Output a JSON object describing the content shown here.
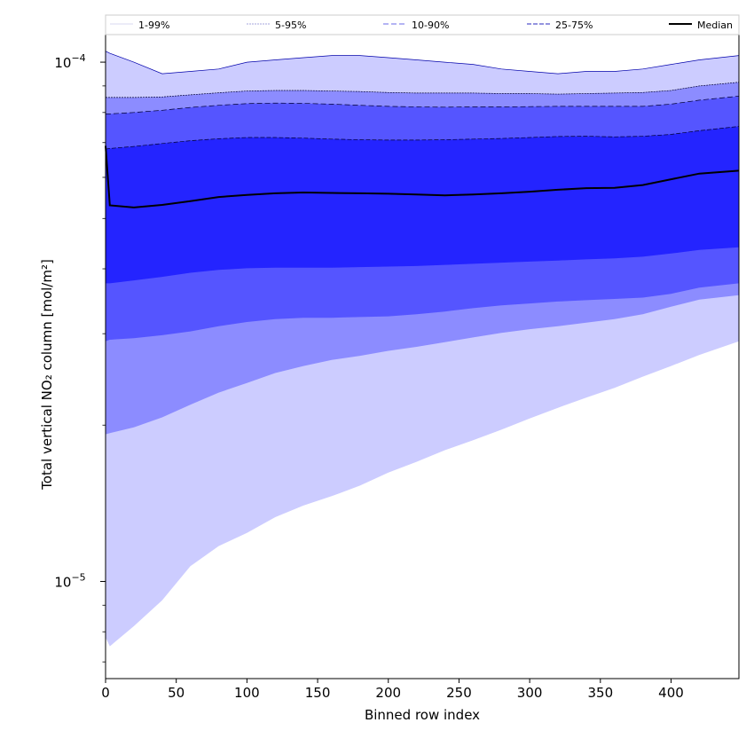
{
  "chart_data": {
    "type": "area",
    "title": "",
    "xlabel": "Binned row index",
    "ylabel": "Total vertical NO₂ column [mol/m²]",
    "x_ticks": [
      "0",
      "50",
      "100",
      "150",
      "200",
      "250",
      "300",
      "350",
      "400"
    ],
    "y_tick_labels": [
      {
        "value": 1e-05,
        "base": "10",
        "exp": "−5"
      },
      {
        "value": 0.0001,
        "base": "10",
        "exp": "−4"
      }
    ],
    "xlim": [
      0,
      448
    ],
    "ylim": [
      6.5e-06,
      0.000113
    ],
    "yscale": "log",
    "grid": false,
    "legend_position": "top",
    "legend": [
      "1-99%",
      "5-95%",
      "10-90%",
      "25-75%",
      "Median"
    ],
    "colors": {
      "band_1_99": "#ccccff",
      "band_5_95": "#8c8cff",
      "band_10_90": "#5555ff",
      "band_25_75": "#2424ff",
      "median": "#000000",
      "edge_dark": "#0000aa"
    },
    "x": [
      0,
      3,
      20,
      40,
      60,
      80,
      100,
      120,
      140,
      160,
      180,
      200,
      220,
      240,
      260,
      280,
      300,
      320,
      340,
      360,
      380,
      400,
      420,
      448
    ],
    "series": [
      {
        "name": "1-99%",
        "lower": [
          7.8e-06,
          7.5e-06,
          8.2e-06,
          9.2e-06,
          1.07e-05,
          1.17e-05,
          1.24e-05,
          1.33e-05,
          1.4e-05,
          1.46e-05,
          1.53e-05,
          1.62e-05,
          1.7e-05,
          1.79e-05,
          1.87e-05,
          1.96e-05,
          2.06e-05,
          2.16e-05,
          2.26e-05,
          2.36e-05,
          2.48e-05,
          2.6e-05,
          2.73e-05,
          2.9e-05
        ],
        "upper": [
          0.000105,
          0.000104,
          0.0001,
          9.5e-05,
          9.6e-05,
          9.7e-05,
          0.0001,
          0.000101,
          0.000102,
          0.000103,
          0.000103,
          0.000102,
          0.000101,
          0.0001,
          9.9e-05,
          9.7e-05,
          9.6e-05,
          9.5e-05,
          9.6e-05,
          9.6e-05,
          9.7e-05,
          9.9e-05,
          0.000101,
          0.000103
        ]
      },
      {
        "name": "5-95%",
        "lower": [
          1.92e-05,
          1.93e-05,
          1.98e-05,
          2.07e-05,
          2.19e-05,
          2.31e-05,
          2.41e-05,
          2.52e-05,
          2.6e-05,
          2.67e-05,
          2.72e-05,
          2.78e-05,
          2.83e-05,
          2.89e-05,
          2.95e-05,
          3.01e-05,
          3.06e-05,
          3.1e-05,
          3.15e-05,
          3.2e-05,
          3.27e-05,
          3.38e-05,
          3.49e-05,
          3.56e-05
        ],
        "upper": [
          8.55e-05,
          8.55e-05,
          8.55e-05,
          8.57e-05,
          8.65e-05,
          8.73e-05,
          8.8e-05,
          8.82e-05,
          8.82e-05,
          8.8e-05,
          8.78e-05,
          8.74e-05,
          8.72e-05,
          8.72e-05,
          8.72e-05,
          8.7e-05,
          8.7e-05,
          8.68e-05,
          8.7e-05,
          8.72e-05,
          8.74e-05,
          8.82e-05,
          9e-05,
          9.15e-05
        ]
      },
      {
        "name": "10-90%",
        "lower": [
          2.9e-05,
          2.92e-05,
          2.94e-05,
          2.98e-05,
          3.03e-05,
          3.1e-05,
          3.16e-05,
          3.2e-05,
          3.22e-05,
          3.22e-05,
          3.23e-05,
          3.24e-05,
          3.27e-05,
          3.31e-05,
          3.36e-05,
          3.4e-05,
          3.43e-05,
          3.46e-05,
          3.48e-05,
          3.5e-05,
          3.52e-05,
          3.58e-05,
          3.68e-05,
          3.75e-05
        ],
        "upper": [
          7.95e-05,
          7.95e-05,
          8e-05,
          8.08e-05,
          8.18e-05,
          8.26e-05,
          8.32e-05,
          8.34e-05,
          8.33e-05,
          8.3e-05,
          8.26e-05,
          8.22e-05,
          8.2e-05,
          8.19e-05,
          8.2e-05,
          8.2e-05,
          8.21e-05,
          8.22e-05,
          8.22e-05,
          8.22e-05,
          8.22e-05,
          8.3e-05,
          8.45e-05,
          8.6e-05
        ]
      },
      {
        "name": "25-75%",
        "lower": [
          3.75e-05,
          3.75e-05,
          3.8e-05,
          3.86e-05,
          3.93e-05,
          3.98e-05,
          4.01e-05,
          4.02e-05,
          4.02e-05,
          4.02e-05,
          4.03e-05,
          4.04e-05,
          4.05e-05,
          4.07e-05,
          4.09e-05,
          4.11e-05,
          4.13e-05,
          4.15e-05,
          4.17e-05,
          4.19e-05,
          4.22e-05,
          4.28e-05,
          4.35e-05,
          4.4e-05
        ],
        "upper": [
          6.8e-05,
          6.82e-05,
          6.88e-05,
          6.97e-05,
          7.06e-05,
          7.12e-05,
          7.16e-05,
          7.16e-05,
          7.14e-05,
          7.11e-05,
          7.09e-05,
          7.08e-05,
          7.08e-05,
          7.09e-05,
          7.11e-05,
          7.13e-05,
          7.16e-05,
          7.19e-05,
          7.2e-05,
          7.18e-05,
          7.2e-05,
          7.26e-05,
          7.38e-05,
          7.52e-05
        ]
      },
      {
        "name": "Median",
        "values": [
          6.9e-05,
          5.3e-05,
          5.25e-05,
          5.31e-05,
          5.4e-05,
          5.5e-05,
          5.55e-05,
          5.59e-05,
          5.61e-05,
          5.6e-05,
          5.59e-05,
          5.58e-05,
          5.56e-05,
          5.54e-05,
          5.56e-05,
          5.59e-05,
          5.63e-05,
          5.68e-05,
          5.72e-05,
          5.73e-05,
          5.8e-05,
          5.95e-05,
          6.1e-05,
          6.18e-05
        ]
      }
    ]
  }
}
